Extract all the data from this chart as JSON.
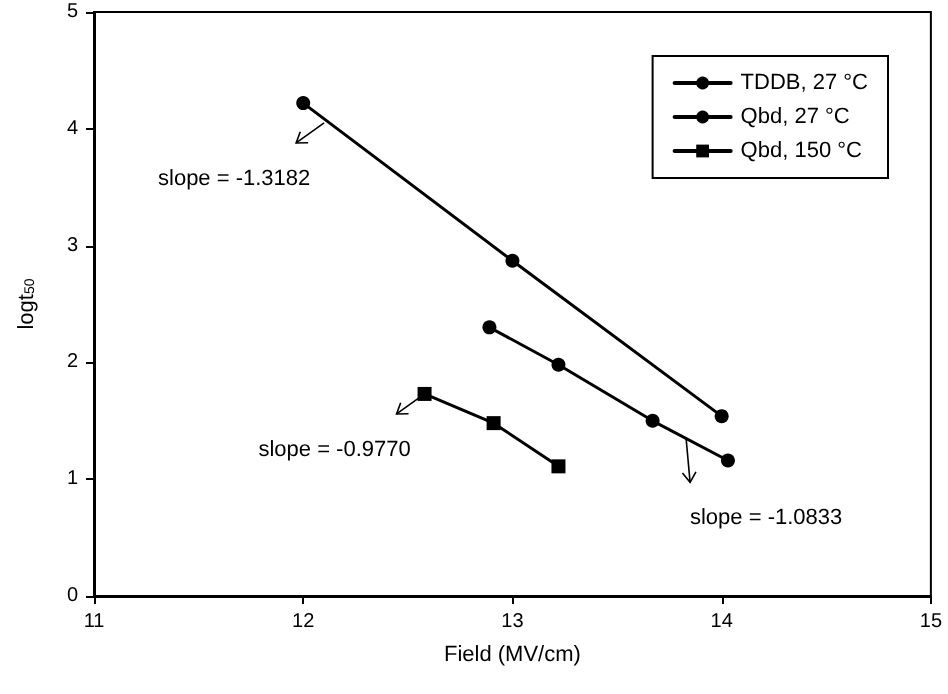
{
  "chart_data": {
    "type": "line",
    "xlabel": "Field (MV/cm)",
    "ylabel": "logt$_{50}$",
    "xlim": [
      11,
      15
    ],
    "xticks": [
      11,
      12,
      13,
      14,
      15
    ],
    "ylim": [
      0,
      5
    ],
    "yticks": [
      0,
      1,
      2,
      3,
      4,
      5
    ],
    "grid": false,
    "legend": "top right",
    "series": [
      {
        "name": "TDDB, 27 °C",
        "color": "#000000",
        "marker": "circle",
        "x": [
          12,
          13,
          14
        ],
        "values": [
          4.22,
          2.87,
          1.54
        ]
      },
      {
        "name": "Qbd, 27 °C",
        "color": "#000000",
        "marker": "circle",
        "x": [
          12.89,
          13.22,
          13.67,
          14.03
        ],
        "values": [
          2.3,
          1.98,
          1.5,
          1.16
        ]
      },
      {
        "name": "Qbd, 150 °C",
        "color": "#000000",
        "marker": "square",
        "x": [
          12.58,
          12.91,
          13.22
        ],
        "values": [
          1.73,
          1.48,
          1.11
        ]
      }
    ],
    "annotations": [
      {
        "text": "slope = -1.3182",
        "x": 12.1,
        "y": 4.05
      },
      {
        "text": "slope = -0.9770",
        "x": 12.58,
        "y": 1.73
      },
      {
        "text": "slope = -1.0833",
        "x": 13.83,
        "y": 1.35
      }
    ]
  }
}
